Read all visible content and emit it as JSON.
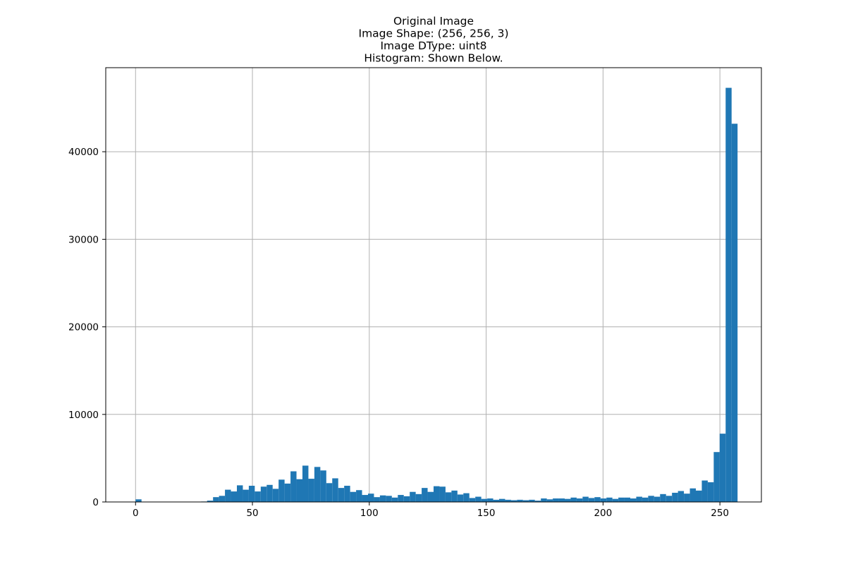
{
  "chart_data": {
    "type": "bar",
    "title_lines": [
      "Original Image",
      "Image Shape: (256, 256, 3)",
      "Image DType: uint8",
      "Histogram: Shown Below."
    ],
    "xlabel": "",
    "ylabel": "",
    "xlim": [
      -12.75,
      267.75
    ],
    "ylim": [
      0,
      49600
    ],
    "x_ticks": [
      0,
      50,
      100,
      150,
      200,
      250
    ],
    "y_ticks": [
      0,
      10000,
      20000,
      30000,
      40000
    ],
    "grid": true,
    "bar_color": "#1f77b4",
    "bins": {
      "start": 0,
      "width": 2.55,
      "values": [
        300,
        0,
        0,
        0,
        0,
        0,
        0,
        0,
        0,
        0,
        0,
        50,
        150,
        550,
        700,
        1400,
        1200,
        1900,
        1400,
        1850,
        1200,
        1750,
        1950,
        1500,
        2550,
        2100,
        3500,
        2600,
        4150,
        2650,
        4000,
        3600,
        2150,
        2700,
        1600,
        1850,
        1150,
        1350,
        800,
        950,
        550,
        750,
        700,
        500,
        800,
        650,
        1150,
        900,
        1600,
        1150,
        1800,
        1750,
        1100,
        1300,
        850,
        1000,
        450,
        600,
        350,
        400,
        250,
        350,
        250,
        200,
        250,
        200,
        250,
        150,
        400,
        300,
        400,
        400,
        350,
        500,
        400,
        600,
        450,
        550,
        400,
        500,
        350,
        500,
        500,
        400,
        600,
        500,
        700,
        600,
        900,
        700,
        1050,
        1250,
        950,
        1550,
        1300,
        2450,
        2250,
        5700,
        7800,
        47300,
        43200
      ]
    }
  }
}
